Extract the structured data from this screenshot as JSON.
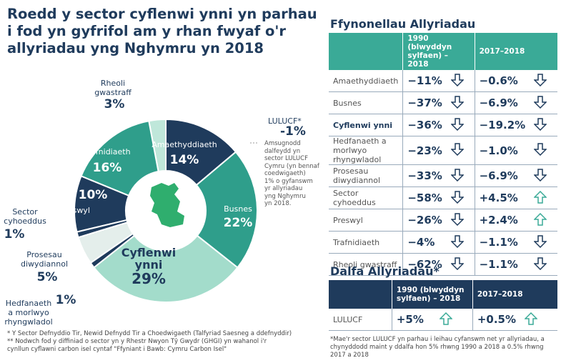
{
  "title": "Roedd y sector cyflenwi ynni yn parhau\ni fod yn gyfrifol am y rhan fwyaf o'r\nallyriadau yng Nghymru yn 2018",
  "chart_data": {
    "type": "donut",
    "categories": [
      "Amaethyddiaeth",
      "Busnes",
      "Cyflenwi\nynni",
      "Hedfanaeth\na morlwyo\nrhyngwladol",
      "Prosesau\ndiwydiannol",
      "Sector\ncyhoeddus",
      "Preswyl",
      "Trafnidiaeth",
      "Rheoli\ngwastraff"
    ],
    "values": [
      14,
      22,
      29,
      1,
      5,
      1,
      10,
      16,
      3
    ],
    "value_labels": [
      "14%",
      "22%",
      "29%",
      "1%",
      "5%",
      "1%",
      "10%",
      "16%",
      "3%"
    ],
    "colors": [
      "#1f3b5c",
      "#2f9e8b",
      "#a3dccb",
      "#1f3b5c",
      "#e4eeeb",
      "#1f3b5c",
      "#1f3b5c",
      "#2f9e8b",
      "#bfe7da"
    ],
    "annotations": [
      {
        "label": "LULUCF*",
        "value": -1,
        "value_label": "-1%",
        "text": "Amsugnodd\ndalfeydd yn\nsector LULUCF\nCymru (yn bennaf\ncoedwigaeth)\n1% o gyfanswm\nyr allyriadau\nyng Nghymru\nyn 2018."
      }
    ]
  },
  "footnotes": [
    "*    Y Sector Defnyddio Tir, Newid Defnydd Tir a Choedwigaeth (Talfyriad Saesneg a ddefnyddir)",
    "**   Nodwch fod y diffiniad o sector yn y Rhestr Nwyon Tŷ Gwydr (GHGI) yn wahanol i'r\n      cynllun cyflawni carbon isel cyntaf \"Ffyniant i Bawb: Cymru Carbon Isel\""
  ],
  "tables": [
    {
      "title": "Ffynonellau Allyriadau",
      "header_color": "#3aaa97",
      "highlight_row": 2,
      "columns": [
        "1990 (blwyddyn\nsylfaen) – 2018",
        "2017–2018"
      ],
      "rows": [
        [
          "Amaethyddiaeth",
          "−11%",
          "−0.6%"
        ],
        [
          "Busnes",
          "−37%",
          "−6.9%"
        ],
        [
          "Cyflenwi ynni",
          "−36%",
          "−19.2%"
        ],
        [
          "Hedfanaeth a\nmorlwyo rhyngwladol",
          "−23%",
          "−1.0%"
        ],
        [
          "Prosesau diwydiannol",
          "−33%",
          "−6.9%"
        ],
        [
          "Sector cyhoeddus",
          "−58%",
          "+4.5%"
        ],
        [
          "Preswyl",
          "−26%",
          "+2.4%"
        ],
        [
          "Trafnidiaeth",
          "−4%",
          "−1.1%"
        ],
        [
          "Rheoli gwastraff",
          "−62%",
          "−1.1%"
        ]
      ]
    },
    {
      "title": "Dalfa Allyriadau*",
      "header_color": "#1f3b5c",
      "columns": [
        "1990 (blwyddyn\nsylfaen) – 2018",
        "2017–2018"
      ],
      "rows": [
        [
          "LULUCF",
          "+5%",
          "+0.5%"
        ]
      ],
      "note": "*Mae'r sector LULUCF yn parhau i leihau cyfanswm net yr allyriadau, a\nchynyddodd maint y ddalfa hon 5% rhwng 1990 a 2018 a 0.5% rhwng\n2017 a 2018"
    }
  ]
}
